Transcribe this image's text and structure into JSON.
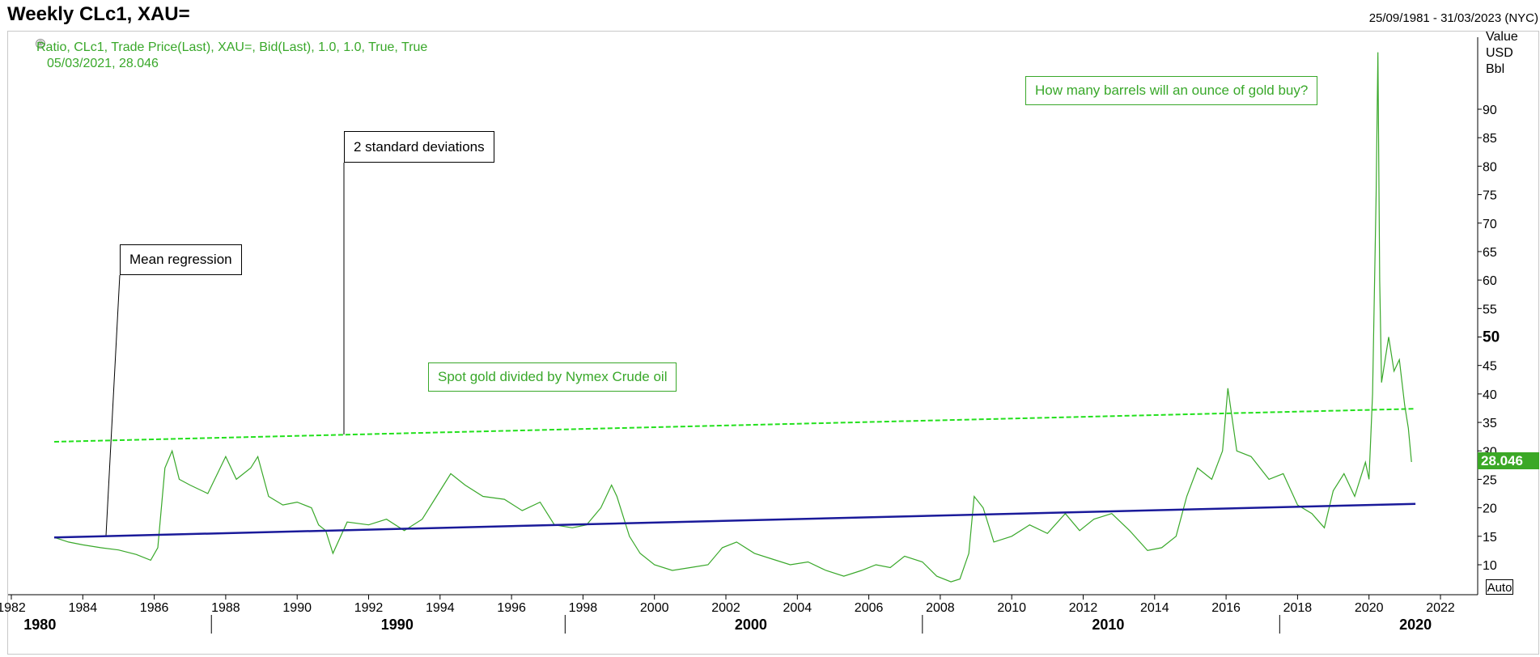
{
  "header": {
    "title": "Weekly CLc1, XAU=",
    "date_range": "25/09/1981 - 31/03/2023 (NYC)"
  },
  "legend": {
    "series_text": "Ratio, CLc1, Trade Price(Last), XAU=, Bid(Last),  1.0, 1.0, True, True",
    "value_text": "05/03/2021, 28.046"
  },
  "axis": {
    "units": [
      "Value",
      "USD",
      "Bbl"
    ],
    "auto_label": "Auto",
    "last_value_tag": "28.046",
    "decade_labels": [
      "1980",
      "1990",
      "2000",
      "2010",
      "2020"
    ]
  },
  "annotations": {
    "mean_regression": "Mean regression",
    "two_std": "2 standard deviations",
    "spot_gold": "Spot gold divided by Nymex Crude oil",
    "question": "How many barrels will an ounce of gold buy?"
  },
  "colors": {
    "series": "#39a82a",
    "upper_band": "#22e01c",
    "regression": "#1a1a9a",
    "accent_tag": "#3ba826"
  },
  "chart_data": {
    "type": "line",
    "title": "Weekly CLc1, XAU=",
    "xlabel": "",
    "ylabel": "Value USD Bbl",
    "xlim": [
      1982,
      2023.5
    ],
    "ylim": [
      5,
      102
    ],
    "x_ticks": [
      1982,
      1984,
      1986,
      1988,
      1990,
      1992,
      1994,
      1996,
      1998,
      2000,
      2002,
      2004,
      2006,
      2008,
      2010,
      2012,
      2014,
      2016,
      2018,
      2020,
      2022
    ],
    "y_ticks": [
      10,
      15,
      20,
      25,
      30,
      35,
      40,
      45,
      50,
      55,
      60,
      65,
      70,
      75,
      80,
      85,
      90
    ],
    "y_tick_emphasis": 50,
    "grid": false,
    "series": [
      {
        "name": "Ratio, CLc1, Trade Price(Last), XAU=, Bid(Last)",
        "x": [
          1983.2,
          1983.6,
          1984.0,
          1984.5,
          1985.0,
          1985.5,
          1985.9,
          1986.1,
          1986.3,
          1986.5,
          1986.7,
          1987.0,
          1987.5,
          1988.0,
          1988.3,
          1988.7,
          1988.9,
          1989.2,
          1989.6,
          1990.0,
          1990.4,
          1990.6,
          1990.8,
          1991.0,
          1991.4,
          1992.0,
          1992.5,
          1993.0,
          1993.5,
          1993.9,
          1994.3,
          1994.7,
          1995.2,
          1995.8,
          1996.3,
          1996.8,
          1997.2,
          1997.7,
          1998.1,
          1998.5,
          1998.8,
          1998.95,
          1999.3,
          1999.6,
          2000.0,
          2000.5,
          2001.0,
          2001.5,
          2001.9,
          2002.3,
          2002.8,
          2003.3,
          2003.8,
          2004.3,
          2004.8,
          2005.3,
          2005.8,
          2006.2,
          2006.6,
          2007.0,
          2007.5,
          2007.9,
          2008.3,
          2008.55,
          2008.8,
          2008.95,
          2009.2,
          2009.5,
          2010.0,
          2010.5,
          2011.0,
          2011.5,
          2011.9,
          2012.3,
          2012.8,
          2013.3,
          2013.8,
          2014.2,
          2014.6,
          2014.9,
          2015.2,
          2015.6,
          2015.9,
          2016.05,
          2016.3,
          2016.7,
          2017.2,
          2017.6,
          2018.0,
          2018.4,
          2018.75,
          2019.0,
          2019.3,
          2019.6,
          2019.9,
          2020.0,
          2020.1,
          2020.2,
          2020.25,
          2020.3,
          2020.35,
          2020.45,
          2020.55,
          2020.7,
          2020.85,
          2021.0,
          2021.1,
          2021.19
        ],
        "y": [
          14.8,
          14.0,
          13.5,
          13.0,
          12.6,
          11.8,
          10.8,
          13.0,
          27.0,
          30.0,
          25.0,
          24.0,
          22.5,
          29.0,
          25.0,
          27.0,
          29.0,
          22.0,
          20.5,
          21.0,
          20.0,
          17.0,
          16.0,
          12.0,
          17.5,
          17.0,
          18.0,
          16.0,
          18.0,
          22.0,
          26.0,
          24.0,
          22.0,
          21.5,
          19.5,
          21.0,
          17.0,
          16.5,
          17.0,
          20.0,
          24.0,
          22.0,
          15.0,
          12.0,
          10.0,
          9.0,
          9.5,
          10.0,
          13.0,
          14.0,
          12.0,
          11.0,
          10.0,
          10.5,
          9.0,
          8.0,
          9.0,
          10.0,
          9.5,
          11.5,
          10.5,
          8.0,
          7.0,
          7.5,
          12.0,
          22.0,
          20.0,
          14.0,
          15.0,
          17.0,
          15.5,
          19.0,
          16.0,
          18.0,
          19.0,
          16.0,
          12.5,
          13.0,
          15.0,
          22.0,
          27.0,
          25.0,
          30.0,
          41.0,
          30.0,
          29.0,
          25.0,
          26.0,
          20.5,
          19.0,
          16.5,
          23.0,
          26.0,
          22.0,
          28.0,
          25.0,
          40.0,
          75.0,
          100.0,
          60.0,
          42.0,
          46.0,
          50.0,
          44.0,
          46.0,
          38.0,
          34.0,
          28.046
        ]
      },
      {
        "name": "Mean regression",
        "x": [
          1983.2,
          2021.3
        ],
        "y": [
          14.8,
          20.7
        ]
      },
      {
        "name": "2 standard deviations",
        "x": [
          1983.2,
          2021.3
        ],
        "y": [
          31.6,
          37.4
        ]
      }
    ]
  }
}
